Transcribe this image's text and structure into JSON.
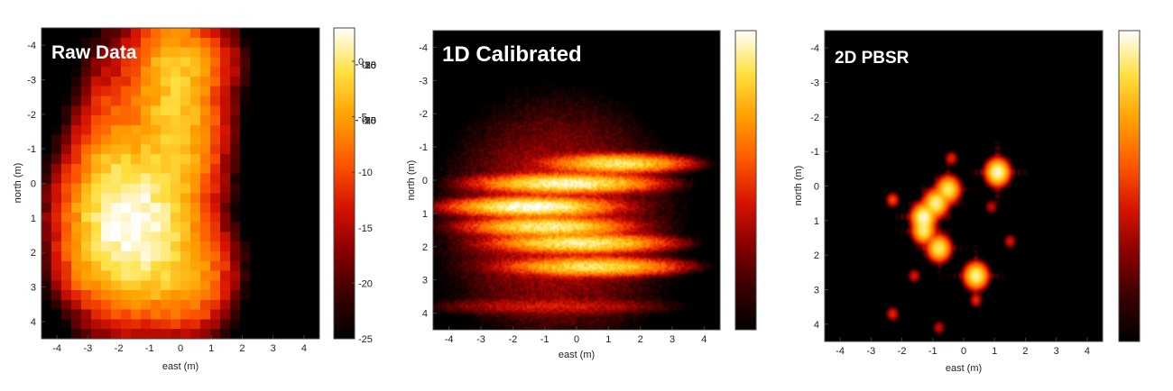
{
  "colormap": {
    "name": "hot",
    "stops": [
      "#000000",
      "#3a0000",
      "#8a0000",
      "#d81400",
      "#ff5a00",
      "#ffa000",
      "#ffe040",
      "#ffffff"
    ]
  },
  "chart_data": [
    {
      "type": "heatmap",
      "title": "Raw Data",
      "xlabel": "east (m)",
      "ylabel": "north (m)",
      "xlim": [
        -4.5,
        4.5
      ],
      "ylim": [
        -4.5,
        4.5
      ],
      "y_inverted": true,
      "xticks": [
        -4,
        -3,
        -2,
        -1,
        0,
        1,
        2,
        3,
        4
      ],
      "yticks": [
        -4,
        -3,
        -2,
        -1,
        0,
        1,
        2,
        3,
        4
      ],
      "colorbar": {
        "range": [
          -25,
          3
        ],
        "ticks": [
          0,
          -5,
          -10,
          -15,
          -20,
          -25
        ]
      },
      "render_style": "blocky",
      "blobs": [
        {
          "x": -1.6,
          "y": 1.2,
          "sx": 0.9,
          "sy": 1.1,
          "amp": 3,
          "width": 4
        },
        {
          "x": -0.2,
          "y": -1.8,
          "sx": 0.7,
          "sy": 1.4,
          "amp": -2,
          "width": 4
        },
        {
          "x": 0.1,
          "y": 2.6,
          "sx": 0.7,
          "sy": 0.8,
          "amp": -4,
          "width": 4
        },
        {
          "x": -2.2,
          "y": -0.2,
          "sx": 0.6,
          "sy": 1.6,
          "amp": -7,
          "width": 4
        },
        {
          "x": 0.0,
          "y": -3.5,
          "sx": 0.8,
          "sy": 0.6,
          "amp": -6,
          "width": 4
        },
        {
          "x": -3.2,
          "y": 2.4,
          "sx": 0.4,
          "sy": 0.5,
          "amp": -12,
          "width": 4
        }
      ]
    },
    {
      "type": "heatmap",
      "title": "1D Calibrated",
      "xlabel": "east (m)",
      "ylabel": "north (m)",
      "xlim": [
        -4.5,
        4.5
      ],
      "ylim": [
        -4.5,
        4.5
      ],
      "y_inverted": true,
      "xticks": [
        -4,
        -3,
        -2,
        -1,
        0,
        1,
        2,
        3,
        4
      ],
      "yticks": [
        -4,
        -3,
        -2,
        -1,
        0,
        1,
        2,
        3,
        4
      ],
      "colorbar": {
        "range": [
          -25,
          3
        ],
        "ticks": [
          0,
          -5,
          -10,
          -15,
          -20,
          -25
        ]
      },
      "render_style": "streaks",
      "blobs": [
        {
          "x": 1.3,
          "y": -0.5,
          "sx": 0.9,
          "sy": 0.12,
          "amp": 0,
          "width": 4
        },
        {
          "x": -0.3,
          "y": 0.1,
          "sx": 1.1,
          "sy": 0.12,
          "amp": 2,
          "width": 4
        },
        {
          "x": -1.4,
          "y": 0.8,
          "sx": 1.0,
          "sy": 0.12,
          "amp": 3,
          "width": 4
        },
        {
          "x": -0.9,
          "y": 1.4,
          "sx": 1.0,
          "sy": 0.12,
          "amp": 1,
          "width": 4
        },
        {
          "x": 0.1,
          "y": 1.9,
          "sx": 1.1,
          "sy": 0.12,
          "amp": 1,
          "width": 4
        },
        {
          "x": 0.5,
          "y": 2.6,
          "sx": 1.1,
          "sy": 0.12,
          "amp": 0,
          "width": 4
        },
        {
          "x": -0.8,
          "y": 3.8,
          "sx": 1.8,
          "sy": 0.12,
          "amp": -14,
          "width": 4
        },
        {
          "x": -0.6,
          "y": 1.2,
          "sx": 1.8,
          "sy": 1.8,
          "amp": -14,
          "width": 4
        }
      ]
    },
    {
      "type": "heatmap",
      "title": "2D PBSR",
      "xlabel": "east (m)",
      "ylabel": "north (m)",
      "xlim": [
        -4.5,
        4.5
      ],
      "ylim": [
        -4.5,
        4.5
      ],
      "y_inverted": true,
      "xticks": [
        -4,
        -3,
        -2,
        -1,
        0,
        1,
        2,
        3,
        4
      ],
      "yticks": [
        -4,
        -3,
        -2,
        -1,
        0,
        1,
        2,
        3,
        4
      ],
      "colorbar": {
        "range": [
          -25,
          3
        ],
        "ticks": [
          0,
          -5,
          -10,
          -15,
          -20,
          -25
        ]
      },
      "render_style": "points",
      "blobs": [
        {
          "x": 1.1,
          "y": -0.4,
          "sx": 0.16,
          "sy": 0.16,
          "amp": 2,
          "width": 4
        },
        {
          "x": -0.5,
          "y": 0.1,
          "sx": 0.16,
          "sy": 0.16,
          "amp": 0,
          "width": 4
        },
        {
          "x": -0.9,
          "y": 0.5,
          "sx": 0.16,
          "sy": 0.16,
          "amp": 1,
          "width": 4
        },
        {
          "x": -1.3,
          "y": 0.9,
          "sx": 0.16,
          "sy": 0.16,
          "amp": 2,
          "width": 4
        },
        {
          "x": -1.3,
          "y": 1.3,
          "sx": 0.15,
          "sy": 0.15,
          "amp": 0,
          "width": 4
        },
        {
          "x": -0.8,
          "y": 1.8,
          "sx": 0.16,
          "sy": 0.16,
          "amp": 0,
          "width": 4
        },
        {
          "x": 0.4,
          "y": 2.6,
          "sx": 0.16,
          "sy": 0.16,
          "amp": 1,
          "width": 4
        },
        {
          "x": -0.4,
          "y": -0.8,
          "sx": 0.1,
          "sy": 0.1,
          "amp": -12,
          "width": 4
        },
        {
          "x": -2.3,
          "y": 0.4,
          "sx": 0.1,
          "sy": 0.1,
          "amp": -10,
          "width": 4
        },
        {
          "x": -2.3,
          "y": 3.7,
          "sx": 0.1,
          "sy": 0.1,
          "amp": -12,
          "width": 4
        },
        {
          "x": -0.8,
          "y": 4.1,
          "sx": 0.1,
          "sy": 0.1,
          "amp": -14,
          "width": 4
        },
        {
          "x": 0.4,
          "y": 3.3,
          "sx": 0.1,
          "sy": 0.1,
          "amp": -12,
          "width": 4
        },
        {
          "x": 1.5,
          "y": 1.6,
          "sx": 0.1,
          "sy": 0.1,
          "amp": -13,
          "width": 4
        },
        {
          "x": 0.9,
          "y": 0.6,
          "sx": 0.1,
          "sy": 0.1,
          "amp": -14,
          "width": 4
        },
        {
          "x": -1.6,
          "y": 2.6,
          "sx": 0.1,
          "sy": 0.1,
          "amp": -13,
          "width": 4
        }
      ]
    }
  ]
}
